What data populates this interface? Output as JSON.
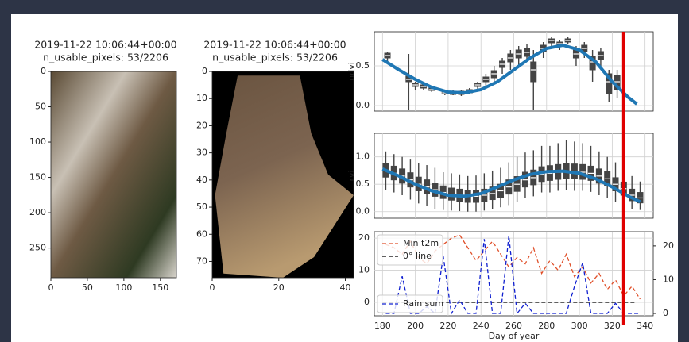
{
  "chart_data": [
    {
      "type": "image",
      "title": "2019-11-22 10:06:44+00:00",
      "subtitle": "n_usable_pixels: 53/2206",
      "xlim": [
        0,
        172
      ],
      "ylim": [
        292,
        0
      ],
      "xticks": [
        0,
        50,
        100,
        150
      ],
      "yticks": [
        0,
        50,
        100,
        150,
        200,
        250
      ]
    },
    {
      "type": "image",
      "title": "2019-11-22 10:06:44+00:00",
      "subtitle": "n_usable_pixels: 53/2206",
      "xlim": [
        0,
        42.5
      ],
      "ylim": [
        76,
        0
      ],
      "xticks": [
        0,
        20,
        40
      ],
      "yticks": [
        0,
        10,
        20,
        30,
        40,
        50,
        60,
        70
      ]
    },
    {
      "type": "box",
      "ylabel": "ndvi",
      "grid": true,
      "show_xtick_labels": false,
      "box_color": "#444444",
      "xlim": [
        175,
        345
      ],
      "ylim": [
        -0.07,
        0.93
      ],
      "xticks": [
        180,
        200,
        220,
        240,
        260,
        280,
        300,
        320,
        340
      ],
      "yticks": [
        {
          "value": 0,
          "label": "0.0"
        },
        0.5
      ],
      "boxes": {
        "x": [
          183,
          196,
          200,
          205,
          210,
          218,
          223,
          228,
          233,
          238,
          243,
          248,
          253,
          258,
          263,
          268,
          272,
          278,
          283,
          288,
          293,
          298,
          303,
          308,
          313,
          318,
          323
        ],
        "low": [
          0.55,
          -0.05,
          0.2,
          0.2,
          0.17,
          0.13,
          0.13,
          0.12,
          0.14,
          0.2,
          0.25,
          0.3,
          0.4,
          0.45,
          0.5,
          0.55,
          -0.05,
          0.6,
          0.75,
          0.7,
          0.78,
          0.5,
          0.6,
          0.3,
          0.5,
          0.05,
          0.1
        ],
        "q1": [
          0.6,
          0.3,
          0.24,
          0.22,
          0.19,
          0.15,
          0.14,
          0.14,
          0.16,
          0.24,
          0.3,
          0.35,
          0.48,
          0.55,
          0.6,
          0.62,
          0.3,
          0.68,
          0.79,
          0.75,
          0.8,
          0.6,
          0.68,
          0.45,
          0.58,
          0.15,
          0.2
        ],
        "median": [
          0.63,
          0.33,
          0.26,
          0.24,
          0.2,
          0.16,
          0.15,
          0.16,
          0.18,
          0.26,
          0.33,
          0.4,
          0.52,
          0.6,
          0.65,
          0.67,
          0.45,
          0.72,
          0.82,
          0.78,
          0.82,
          0.65,
          0.72,
          0.55,
          0.63,
          0.3,
          0.3
        ],
        "q3": [
          0.66,
          0.37,
          0.28,
          0.26,
          0.22,
          0.18,
          0.17,
          0.18,
          0.2,
          0.28,
          0.36,
          0.44,
          0.56,
          0.65,
          0.7,
          0.72,
          0.55,
          0.76,
          0.84,
          0.8,
          0.84,
          0.7,
          0.76,
          0.62,
          0.68,
          0.4,
          0.38
        ],
        "high": [
          0.68,
          0.65,
          0.3,
          0.28,
          0.24,
          0.2,
          0.19,
          0.2,
          0.22,
          0.3,
          0.4,
          0.5,
          0.6,
          0.7,
          0.75,
          0.78,
          0.7,
          0.8,
          0.86,
          0.83,
          0.86,
          0.75,
          0.8,
          0.7,
          0.72,
          0.45,
          0.45
        ]
      },
      "fit": {
        "color": "#1f77b4",
        "x": [
          180,
          190,
          200,
          210,
          220,
          230,
          240,
          250,
          260,
          270,
          280,
          290,
          300,
          310,
          320,
          330,
          335
        ],
        "values": [
          0.58,
          0.45,
          0.33,
          0.23,
          0.17,
          0.16,
          0.2,
          0.3,
          0.45,
          0.6,
          0.72,
          0.76,
          0.7,
          0.55,
          0.3,
          0.1,
          0.02
        ]
      },
      "vline": {
        "x": 327,
        "color": "#e00000"
      }
    },
    {
      "type": "box",
      "ylabel": "rvi",
      "grid": true,
      "show_xtick_labels": false,
      "box_color": "#444444",
      "xlim": [
        175,
        345
      ],
      "ylim": [
        -0.12,
        1.43
      ],
      "xticks": [
        180,
        200,
        220,
        240,
        260,
        280,
        300,
        320,
        340
      ],
      "yticks": [
        {
          "value": 0,
          "label": "0.0"
        },
        0.5,
        {
          "value": 1,
          "label": "1.0"
        }
      ],
      "boxes": {
        "x": [
          182,
          187,
          192,
          197,
          202,
          207,
          212,
          217,
          222,
          227,
          232,
          237,
          242,
          247,
          252,
          257,
          262,
          267,
          272,
          277,
          282,
          287,
          292,
          297,
          302,
          307,
          312,
          317,
          322,
          327,
          332,
          337
        ],
        "low": [
          0.4,
          0.35,
          0.3,
          0.22,
          0.15,
          0.1,
          0.05,
          0.03,
          0.02,
          0.01,
          0.0,
          0.0,
          0.02,
          0.05,
          0.08,
          0.12,
          0.18,
          0.25,
          0.28,
          0.35,
          0.35,
          0.38,
          0.4,
          0.38,
          0.38,
          0.36,
          0.3,
          0.25,
          0.18,
          0.1,
          0.05,
          0.03
        ],
        "q1": [
          0.63,
          0.58,
          0.52,
          0.45,
          0.38,
          0.33,
          0.28,
          0.24,
          0.21,
          0.19,
          0.17,
          0.17,
          0.19,
          0.22,
          0.26,
          0.32,
          0.37,
          0.45,
          0.49,
          0.55,
          0.57,
          0.59,
          0.61,
          0.6,
          0.59,
          0.57,
          0.52,
          0.47,
          0.38,
          0.3,
          0.2,
          0.16
        ],
        "median": [
          0.75,
          0.7,
          0.65,
          0.58,
          0.5,
          0.45,
          0.4,
          0.35,
          0.32,
          0.3,
          0.28,
          0.28,
          0.3,
          0.33,
          0.38,
          0.45,
          0.5,
          0.58,
          0.62,
          0.68,
          0.7,
          0.72,
          0.74,
          0.73,
          0.72,
          0.7,
          0.65,
          0.6,
          0.5,
          0.42,
          0.3,
          0.25
        ],
        "q3": [
          0.88,
          0.83,
          0.78,
          0.71,
          0.63,
          0.58,
          0.52,
          0.47,
          0.43,
          0.41,
          0.39,
          0.39,
          0.41,
          0.45,
          0.5,
          0.58,
          0.64,
          0.72,
          0.76,
          0.82,
          0.84,
          0.86,
          0.88,
          0.87,
          0.86,
          0.83,
          0.78,
          0.73,
          0.62,
          0.54,
          0.41,
          0.35
        ],
        "high": [
          1.1,
          1.05,
          1.0,
          0.95,
          0.88,
          0.85,
          0.8,
          0.72,
          0.7,
          0.68,
          0.65,
          0.66,
          0.7,
          0.75,
          0.8,
          0.9,
          1.0,
          1.08,
          1.12,
          1.2,
          1.2,
          1.25,
          1.3,
          1.28,
          1.25,
          1.2,
          1.1,
          1.0,
          0.9,
          0.8,
          0.65,
          0.55
        ]
      },
      "fit": {
        "color": "#1f77b4",
        "x": [
          180,
          190,
          200,
          210,
          220,
          230,
          240,
          250,
          260,
          270,
          280,
          290,
          300,
          310,
          320,
          330,
          337
        ],
        "values": [
          0.78,
          0.65,
          0.5,
          0.38,
          0.3,
          0.28,
          0.33,
          0.45,
          0.58,
          0.68,
          0.73,
          0.74,
          0.7,
          0.6,
          0.45,
          0.28,
          0.18
        ]
      }
    },
    {
      "type": "line",
      "xlabel": "Day of year",
      "grid": true,
      "show_xtick_labels": true,
      "xlim": [
        175,
        345
      ],
      "ylim": [
        -4.2,
        22
      ],
      "y2lim": [
        -0.7,
        24.2
      ],
      "xticks": [
        180,
        200,
        220,
        240,
        260,
        280,
        300,
        320,
        340
      ],
      "yticks": [
        0,
        10,
        20
      ],
      "y2ticks": [
        0,
        10,
        20
      ],
      "series": [
        {
          "name": "Min t2m",
          "color": "#e0502a",
          "legend": "upper left",
          "x": [
            182,
            187,
            192,
            197,
            202,
            207,
            212,
            217,
            222,
            227,
            232,
            237,
            242,
            247,
            252,
            257,
            262,
            267,
            272,
            277,
            282,
            287,
            292,
            297,
            302,
            307,
            312,
            317,
            322,
            327,
            332,
            337
          ],
          "values": [
            18,
            17,
            15,
            19,
            14,
            12,
            16,
            18,
            20,
            21,
            17,
            13,
            16,
            19,
            15,
            11,
            14,
            12,
            17,
            9,
            13,
            10,
            15,
            8,
            11,
            6,
            9,
            4,
            7,
            2,
            5,
            1
          ]
        },
        {
          "name": "0° line",
          "color": "#000000",
          "legend": "upper left",
          "x": [
            180,
            335
          ],
          "values": [
            0,
            0
          ]
        },
        {
          "name": "Rain sum",
          "color": "#1020d0",
          "legend": "lower left",
          "axis": "y2",
          "x": [
            182,
            187,
            192,
            197,
            202,
            207,
            212,
            217,
            222,
            227,
            232,
            237,
            242,
            247,
            252,
            257,
            262,
            267,
            272,
            277,
            282,
            287,
            292,
            297,
            302,
            307,
            312,
            317,
            322,
            327,
            332,
            337
          ],
          "values": [
            0,
            0,
            11,
            0,
            0,
            2,
            0,
            17,
            0,
            4,
            0,
            0,
            22,
            0,
            0,
            23,
            0,
            3,
            0,
            0,
            0,
            0,
            0,
            8,
            15,
            0,
            0,
            0,
            3,
            0,
            0,
            0
          ]
        }
      ]
    }
  ]
}
